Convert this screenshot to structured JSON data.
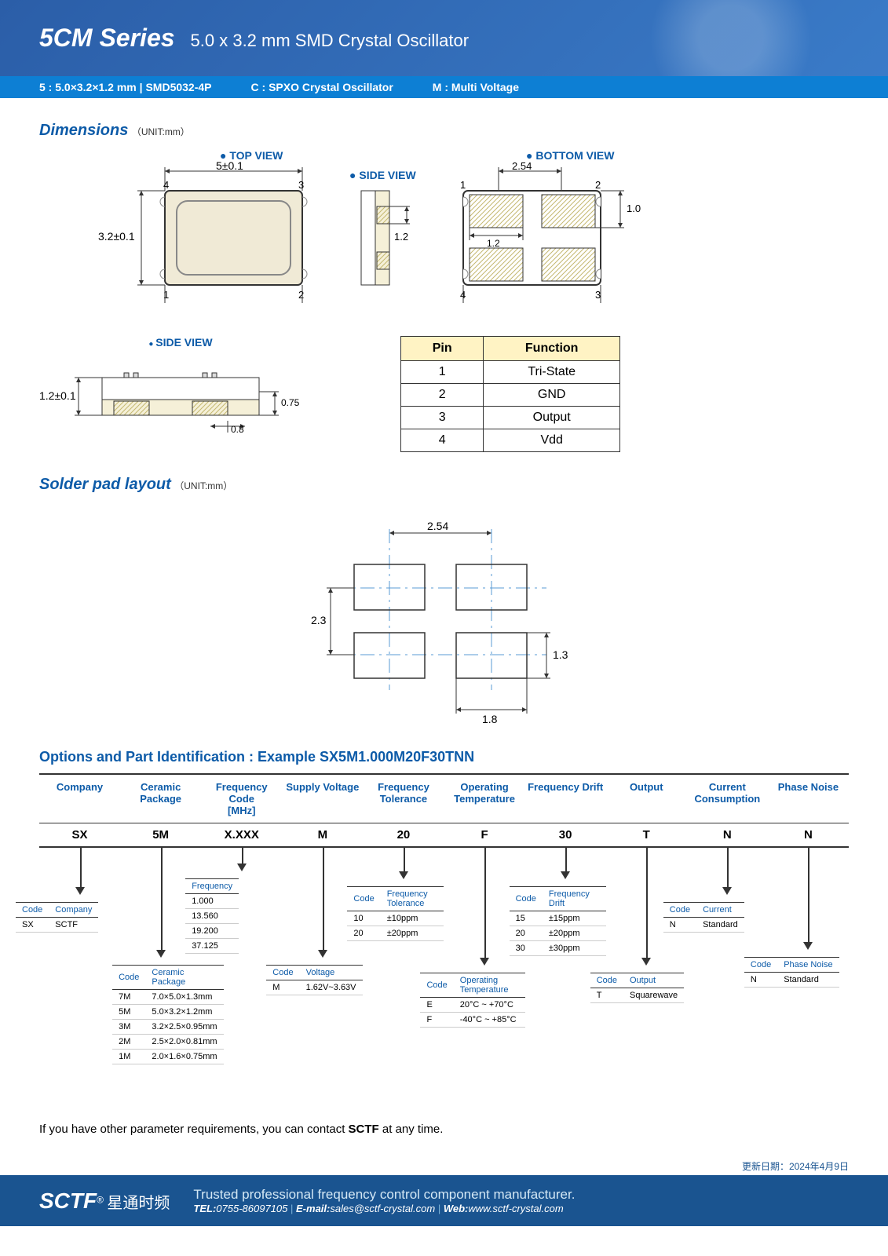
{
  "header": {
    "series": "5CM Series",
    "subtitle": "5.0 x 3.2 mm SMD Crystal Oscillator",
    "spec1_label": "5 :",
    "spec1": "5.0×3.2×1.2 mm | SMD5032-4P",
    "spec2_label": "C :",
    "spec2": "SPXO Crystal Oscillator",
    "spec3_label": "M :",
    "spec3": "Multi Voltage"
  },
  "dimensions": {
    "title": "Dimensions",
    "unit": "（UNIT:mm）",
    "top_label": "TOP VIEW",
    "side_label": "SIDE VIEW",
    "bottom_label": "BOTTOM VIEW",
    "width": "5±0.1",
    "height": "3.2±0.1",
    "thickness": "1.2±0.1",
    "pad_w": "2.54",
    "pad_h": "1.2",
    "pad_h2": "1.2",
    "pad_edge": "1.0",
    "lead_h": "0.75",
    "lead_w": "0.8",
    "pins": {
      "p1": "1",
      "p2": "2",
      "p3": "3",
      "p4": "4"
    },
    "colors": {
      "outline": "#333333",
      "fill_body": "#f0ead6",
      "fill_pad": "#fff3c4",
      "hatch": "#c4b870",
      "dimline": "#333333",
      "centerline": "#5a9bd4"
    }
  },
  "pin_table": {
    "h1": "Pin",
    "h2": "Function",
    "rows": [
      {
        "pin": "1",
        "func": "Tri-State"
      },
      {
        "pin": "2",
        "func": "GND"
      },
      {
        "pin": "3",
        "func": "Output"
      },
      {
        "pin": "4",
        "func": "Vdd"
      }
    ]
  },
  "solder": {
    "title": "Solder pad layout",
    "unit": "（UNIT:mm）",
    "w": "2.54",
    "h": "2.3",
    "pw": "1.8",
    "ph": "1.3"
  },
  "options": {
    "title": "Options and Part Identification :  Example SX5M1.000M20F30TNN",
    "headers": [
      "Company",
      "Ceramic Package",
      "Frequency Code [MHz]",
      "Supply Voltage",
      "Frequency Tolerance",
      "Operating Temperature",
      "Frequency Drift",
      "Output",
      "Current Consumption",
      "Phase Noise"
    ],
    "values": [
      "SX",
      "5M",
      "X.XXX",
      "M",
      "20",
      "F",
      "30",
      "T",
      "N",
      "N"
    ],
    "tables": {
      "company": {
        "h": [
          "Code",
          "Company"
        ],
        "r": [
          [
            "SX",
            "SCTF"
          ]
        ],
        "arrow_h": 50
      },
      "package": {
        "h": [
          "Code",
          "Ceramic Package"
        ],
        "r": [
          [
            "7M",
            "7.0×5.0×1.3mm"
          ],
          [
            "5M",
            "5.0×3.2×1.2mm"
          ],
          [
            "3M",
            "3.2×2.5×0.95mm"
          ],
          [
            "2M",
            "2.5×2.0×0.81mm"
          ],
          [
            "1M",
            "2.0×1.6×0.75mm"
          ]
        ],
        "arrow_h": 130
      },
      "frequency": {
        "h": [
          "Frequency"
        ],
        "r": [
          [
            "1.000"
          ],
          [
            "13.560"
          ],
          [
            "19.200"
          ],
          [
            "37.125"
          ]
        ],
        "arrow_h": 20
      },
      "voltage": {
        "h": [
          "Code",
          "Voltage"
        ],
        "r": [
          [
            "M",
            "1.62V~3.63V"
          ]
        ],
        "arrow_h": 130
      },
      "tolerance": {
        "h": [
          "Code",
          "Frequency Tolerance"
        ],
        "r": [
          [
            "10",
            "±10ppm"
          ],
          [
            "20",
            "±20ppm"
          ]
        ],
        "arrow_h": 30
      },
      "temperature": {
        "h": [
          "Code",
          "Operating Temperature"
        ],
        "r": [
          [
            "E",
            "20°C ~ +70°C"
          ],
          [
            "F",
            "-40°C ~ +85°C"
          ]
        ],
        "arrow_h": 140
      },
      "drift": {
        "h": [
          "Code",
          "Frequency Drift"
        ],
        "r": [
          [
            "15",
            "±15ppm"
          ],
          [
            "20",
            "±20ppm"
          ],
          [
            "30",
            "±30ppm"
          ]
        ],
        "arrow_h": 30
      },
      "output": {
        "h": [
          "Code",
          "Output"
        ],
        "r": [
          [
            "T",
            "Squarewave"
          ]
        ],
        "arrow_h": 140
      },
      "current": {
        "h": [
          "Code",
          "Current"
        ],
        "r": [
          [
            "N",
            "Standard"
          ]
        ],
        "arrow_h": 50
      },
      "phase": {
        "h": [
          "Code",
          "Phase Noise"
        ],
        "r": [
          [
            "N",
            "Standard"
          ]
        ],
        "arrow_h": 120
      }
    }
  },
  "note": "If you have other parameter requirements, you can contact ",
  "note_b": "SCTF",
  "note_end": " at any time.",
  "footer": {
    "logo": "SCTF",
    "logo_r": "®",
    "logo_cn": "星通时频",
    "tagline": "Trusted professional frequency control component manufacturer.",
    "tel_l": "TEL:",
    "tel": "0755-86097105",
    "email_l": "E-mail:",
    "email": "sales@sctf-crystal.com",
    "web_l": "Web:",
    "web": "www.sctf-crystal.com",
    "date": "更新日期：2024年4月9日"
  }
}
